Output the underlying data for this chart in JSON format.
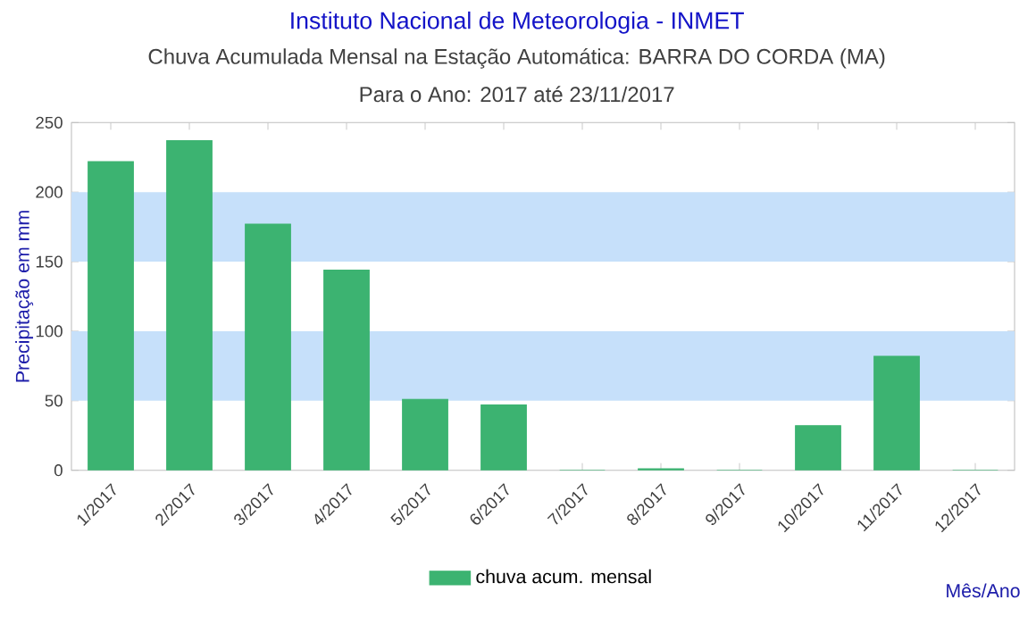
{
  "chart_data": {
    "type": "bar",
    "title": "Instituto Nacional de Meteorologia - INMET",
    "subtitle": "Chuva Acumulada Mensal na Estação Automática: BARRA DO CORDA (MA)",
    "annotations": [
      "Para o Ano: 2017 até 23/11/2017"
    ],
    "xlabel": "Mês/Ano",
    "ylabel": "Precipitação em mm",
    "categories": [
      "1/2017",
      "2/2017",
      "3/2017",
      "4/2017",
      "5/2017",
      "6/2017",
      "7/2017",
      "8/2017",
      "9/2017",
      "10/2017",
      "11/2017",
      "12/2017"
    ],
    "series": [
      {
        "name": "chuva acum. mensal",
        "color": "#3cb371",
        "values": [
          222,
          237,
          177,
          144,
          51,
          47,
          0,
          1,
          0,
          32,
          82,
          0
        ]
      }
    ],
    "ylim": [
      0,
      250
    ],
    "yticks": [
      0,
      50,
      100,
      150,
      200,
      250
    ],
    "bands": [
      {
        "axis": "y",
        "from": 50,
        "to": 100,
        "color": "#c6e0fa"
      },
      {
        "axis": "y",
        "from": 150,
        "to": 200,
        "color": "#c6e0fa"
      }
    ],
    "legend": "bottom"
  }
}
